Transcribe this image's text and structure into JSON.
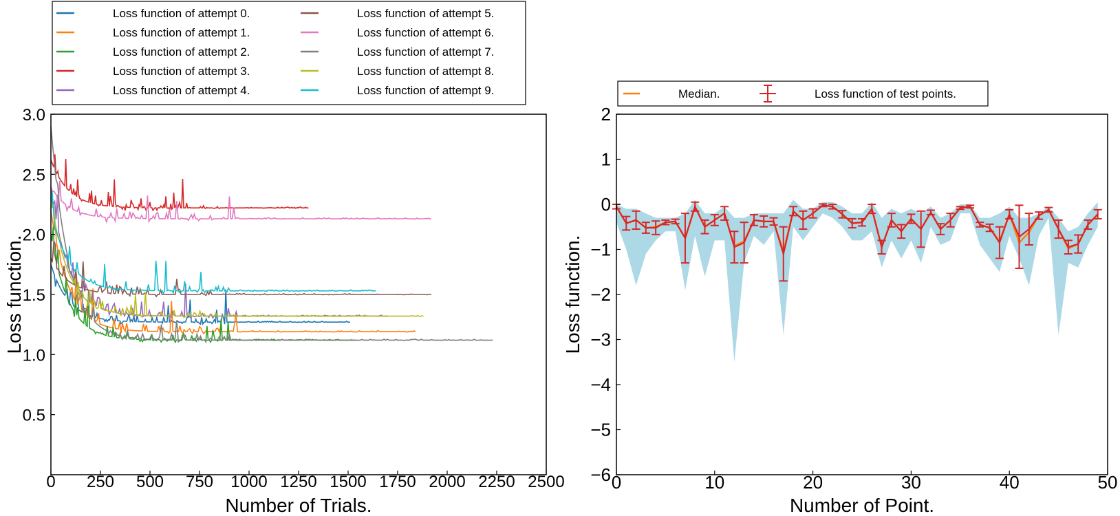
{
  "chart_data": [
    {
      "type": "line",
      "xlabel": "Number of Trials.",
      "ylabel": "Loss function.",
      "xlim": [
        0,
        2500
      ],
      "ylim": [
        0,
        3.0
      ],
      "xticks": [
        "0",
        "250",
        "500",
        "750",
        "1000",
        "1250",
        "1500",
        "1750",
        "2000",
        "2250",
        "2500"
      ],
      "yticks": [
        "0.5",
        "1.0",
        "1.5",
        "2.0",
        "2.5",
        "3.0"
      ],
      "legend_position": "above-plot",
      "grid": false,
      "series": [
        {
          "name": "Loss function of attempt 0.",
          "color": "#1f77b4",
          "length": 1510,
          "initial": 1.75,
          "final": 1.27
        },
        {
          "name": "Loss function of attempt 1.",
          "color": "#ff7f0e",
          "length": 1840,
          "initial": 2.2,
          "final": 1.19
        },
        {
          "name": "Loss function of attempt 2.",
          "color": "#2ca02c",
          "length": 1540,
          "initial": 2.0,
          "final": 1.12
        },
        {
          "name": "Loss function of attempt 3.",
          "color": "#d62728",
          "length": 1300,
          "initial": 2.62,
          "final": 2.22
        },
        {
          "name": "Loss function of attempt 4.",
          "color": "#9467bd",
          "length": 1700,
          "initial": 2.4,
          "final": 1.32
        },
        {
          "name": "Loss function of attempt 5.",
          "color": "#8c564b",
          "length": 1920,
          "initial": 1.8,
          "final": 1.5
        },
        {
          "name": "Loss function of attempt 6.",
          "color": "#e377c2",
          "length": 1920,
          "initial": 2.4,
          "final": 2.13
        },
        {
          "name": "Loss function of attempt 7.",
          "color": "#7f7f7f",
          "length": 2230,
          "initial": 2.9,
          "final": 1.12
        },
        {
          "name": "Loss function of attempt 8.",
          "color": "#bcbd22",
          "length": 1880,
          "initial": 2.3,
          "final": 1.32
        },
        {
          "name": "Loss function of attempt 9.",
          "color": "#17becf",
          "length": 1640,
          "initial": 2.2,
          "final": 1.53
        }
      ]
    },
    {
      "type": "line",
      "xlabel": "Number of Point.",
      "ylabel": "Loss function.",
      "xlim": [
        0,
        50
      ],
      "ylim": [
        -6,
        2
      ],
      "xticks": [
        "0",
        "10",
        "20",
        "30",
        "40",
        "50"
      ],
      "yticks": [
        "−6",
        "−5",
        "−4",
        "−3",
        "−2",
        "−1",
        "0",
        "1",
        "2"
      ],
      "legend_position": "above-plot",
      "grid": false,
      "x": [
        0,
        1,
        2,
        3,
        4,
        5,
        6,
        7,
        8,
        9,
        10,
        11,
        12,
        13,
        14,
        15,
        16,
        17,
        18,
        19,
        20,
        21,
        22,
        23,
        24,
        25,
        26,
        27,
        28,
        29,
        30,
        31,
        32,
        33,
        34,
        35,
        36,
        37,
        38,
        39,
        40,
        41,
        42,
        43,
        44,
        45,
        46,
        47,
        48,
        49
      ],
      "series": [
        {
          "name": "Median.",
          "color": "#ff7f0e",
          "values": [
            -0.05,
            -0.42,
            -0.35,
            -0.52,
            -0.5,
            -0.4,
            -0.38,
            -0.75,
            -0.05,
            -0.5,
            -0.35,
            -0.2,
            -0.92,
            -0.82,
            -0.35,
            -0.38,
            -0.38,
            -1.05,
            -0.15,
            -0.35,
            -0.2,
            -0.02,
            -0.05,
            -0.22,
            -0.42,
            -0.4,
            -0.1,
            -0.95,
            -0.35,
            -0.6,
            -0.32,
            -0.55,
            -0.18,
            -0.55,
            -0.35,
            -0.08,
            -0.05,
            -0.45,
            -0.52,
            -0.82,
            -0.22,
            -0.85,
            -0.62,
            -0.25,
            -0.12,
            -0.55,
            -0.98,
            -0.88,
            -0.45,
            -0.22
          ]
        },
        {
          "name": "Loss function of test points.",
          "color": "#d62728",
          "values": [
            -0.05,
            -0.42,
            -0.35,
            -0.52,
            -0.52,
            -0.4,
            -0.38,
            -0.75,
            -0.05,
            -0.5,
            -0.35,
            -0.2,
            -0.95,
            -0.85,
            -0.35,
            -0.38,
            -0.38,
            -1.1,
            -0.15,
            -0.35,
            -0.2,
            -0.02,
            -0.05,
            -0.22,
            -0.42,
            -0.4,
            -0.1,
            -0.95,
            -0.35,
            -0.6,
            -0.32,
            -0.55,
            -0.18,
            -0.55,
            -0.35,
            -0.08,
            -0.05,
            -0.45,
            -0.52,
            -0.85,
            -0.22,
            -0.72,
            -0.55,
            -0.25,
            -0.12,
            -0.55,
            -0.95,
            -0.88,
            -0.45,
            -0.22
          ],
          "errors": [
            0.05,
            0.15,
            0.2,
            0.12,
            0.15,
            0.05,
            0.05,
            0.55,
            0.1,
            0.15,
            0.12,
            0.15,
            0.35,
            0.45,
            0.12,
            0.12,
            0.08,
            0.6,
            0.1,
            0.2,
            0.1,
            0.03,
            0.05,
            0.08,
            0.1,
            0.08,
            0.1,
            0.15,
            0.15,
            0.15,
            0.1,
            0.4,
            0.05,
            0.12,
            0.15,
            0.03,
            0.03,
            0.05,
            0.08,
            0.35,
            0.1,
            0.7,
            0.35,
            0.08,
            0.05,
            0.2,
            0.15,
            0.2,
            0.1,
            0.1
          ]
        }
      ],
      "band": {
        "color": "#add8e6",
        "upper": [
          0.0,
          -0.1,
          -0.1,
          -0.2,
          -0.3,
          -0.3,
          -0.3,
          -0.2,
          0.1,
          -0.2,
          -0.2,
          -0.05,
          -0.3,
          -0.3,
          -0.2,
          -0.2,
          -0.2,
          -0.2,
          0.1,
          -0.1,
          -0.1,
          0.05,
          0.05,
          -0.05,
          -0.2,
          -0.2,
          0.05,
          -0.3,
          -0.1,
          -0.2,
          -0.1,
          -0.2,
          -0.05,
          -0.3,
          -0.2,
          0.0,
          0.0,
          -0.3,
          -0.3,
          -0.2,
          -0.05,
          -0.3,
          -0.3,
          -0.2,
          -0.05,
          -0.3,
          -0.6,
          -0.5,
          -0.2,
          0.05
        ],
        "lower": [
          -0.4,
          -1.0,
          -1.8,
          -1.1,
          -0.8,
          -0.6,
          -0.6,
          -1.9,
          -0.7,
          -1.6,
          -0.8,
          -0.8,
          -3.5,
          -1.3,
          -0.7,
          -0.9,
          -0.6,
          -2.9,
          -0.5,
          -0.8,
          -0.5,
          -0.2,
          -0.3,
          -0.5,
          -0.8,
          -0.8,
          -0.6,
          -1.4,
          -0.8,
          -1.2,
          -0.8,
          -1.3,
          -0.5,
          -0.9,
          -0.8,
          -0.2,
          -0.2,
          -0.9,
          -1.2,
          -1.5,
          -0.7,
          -1.2,
          -1.8,
          -0.7,
          -0.3,
          -2.9,
          -1.3,
          -1.4,
          -0.9,
          -0.5
        ]
      }
    }
  ]
}
